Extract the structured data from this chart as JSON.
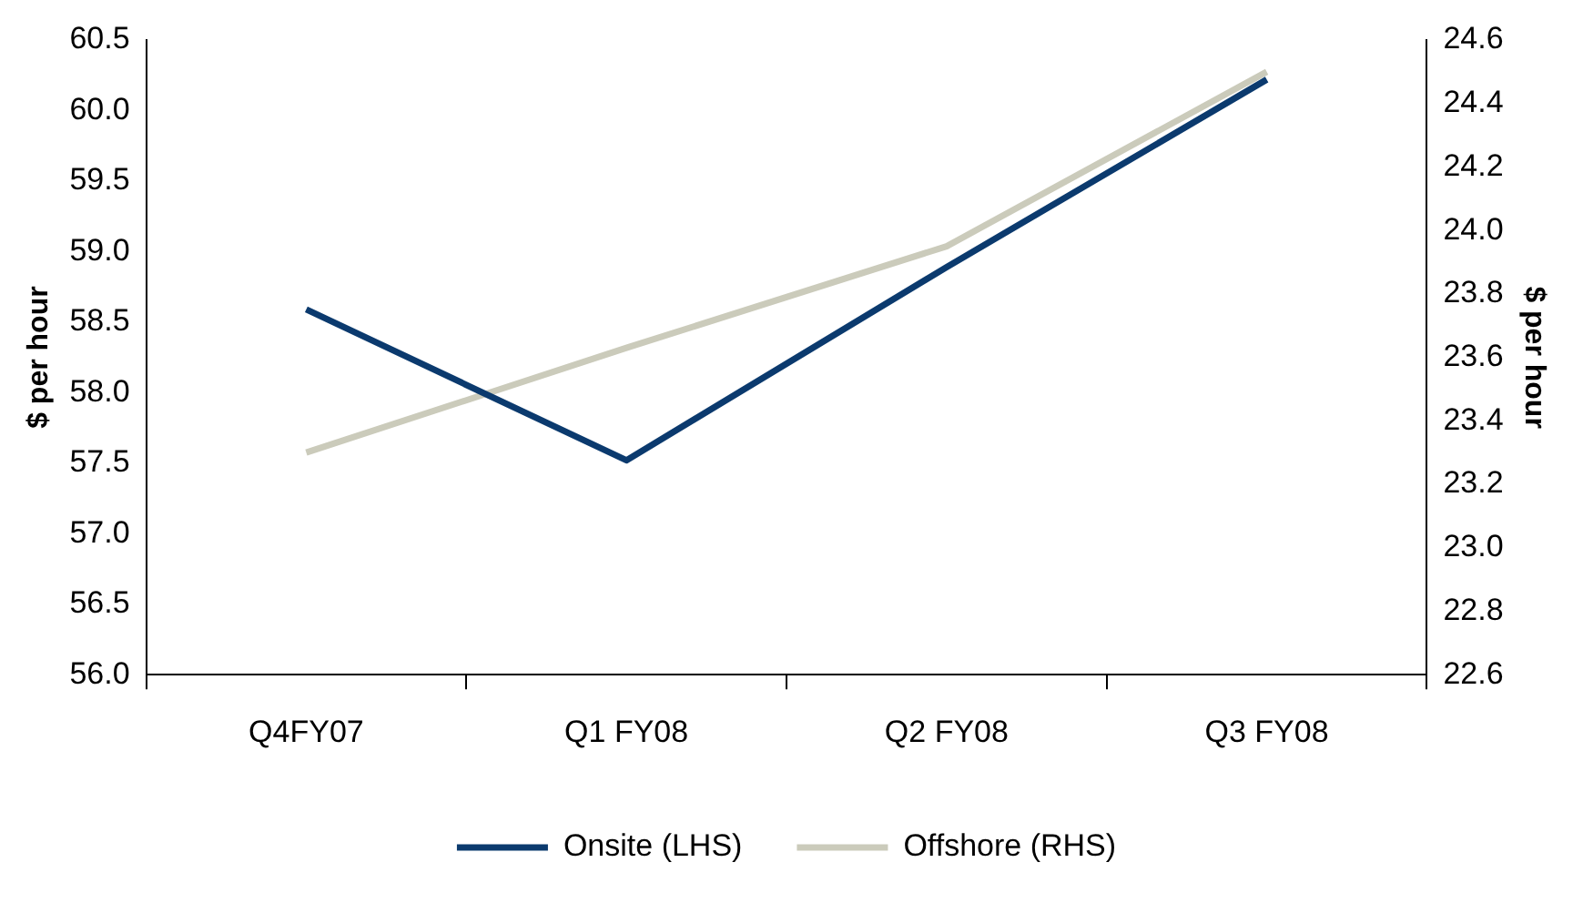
{
  "chart_data": {
    "type": "line",
    "categories": [
      "Q4FY07",
      "Q1 FY08",
      "Q2 FY08",
      "Q3 FY08"
    ],
    "series": [
      {
        "name": "Onsite (LHS)",
        "color": "#0b3a6e",
        "values": [
          58.59,
          57.52,
          58.89,
          60.22
        ]
      },
      {
        "name": "Offshore (RHS)",
        "color": "#cbcbbb",
        "values": [
          23.3,
          23.63,
          23.95,
          24.5
        ],
        "axis": "y2"
      }
    ],
    "ylabel": "$ per hour",
    "y2label": "$ per hour",
    "ylim": [
      56.0,
      60.5
    ],
    "yticks": [
      {
        "value": 56,
        "label": "56.0"
      },
      56.5,
      {
        "value": 57,
        "label": "57.0"
      },
      57.5,
      {
        "value": 58,
        "label": "58.0"
      },
      58.5,
      {
        "value": 59,
        "label": "59.0"
      },
      59.5,
      {
        "value": 60,
        "label": "60.0"
      },
      60.5
    ],
    "y2lim": [
      22.6,
      24.6
    ],
    "y2ticks": [
      22.6,
      22.8,
      {
        "value": 23,
        "label": "23.0"
      },
      23.2,
      23.4,
      23.6,
      23.8,
      {
        "value": 24,
        "label": "24.0"
      },
      24.2,
      24.4,
      24.6
    ],
    "grid": false,
    "legend": "bottom",
    "marker": "none",
    "line_style": "solid"
  }
}
